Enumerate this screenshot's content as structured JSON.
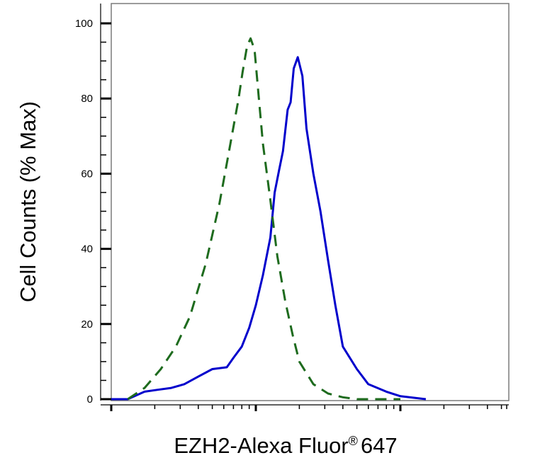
{
  "chart_data": {
    "type": "line",
    "title": "",
    "xlabel": "EZH2-Alexa Fluor",
    "xlabel_mark": "®",
    "xlabel_suffix": "647",
    "ylabel": "Cell Counts (% Max)",
    "x_scale": "log",
    "xlim": [
      1,
      10000
    ],
    "ylim": [
      0,
      105
    ],
    "y_ticks": [
      0,
      20,
      40,
      60,
      80,
      100
    ],
    "y_tick_labels": [
      "0",
      "20",
      "40",
      "60",
      "80",
      "100"
    ],
    "x_tick_labels": [],
    "grid": false,
    "legend": "none",
    "series": [
      {
        "style": "solid",
        "color": "#0000cc",
        "x": [
          1.0,
          1.3,
          1.7,
          2.1,
          2.6,
          3.2,
          4.0,
          5.0,
          6.3,
          7.0,
          8.0,
          9.0,
          10.0,
          11.2,
          12.6,
          13.5,
          14.5,
          15.4,
          16.6,
          17.4,
          18.3,
          19.5,
          21.0,
          22.4,
          25.0,
          28.0,
          31.6,
          35.5,
          40.0,
          50.0,
          60.0,
          80.0,
          100.0,
          150.0,
          1000.0,
          10000.0
        ],
        "y": [
          0,
          0,
          2,
          2.5,
          3,
          4,
          6,
          8,
          8.5,
          11,
          14,
          19,
          25,
          33,
          43,
          55,
          61,
          66,
          77,
          79,
          88,
          91,
          86,
          72,
          60,
          50,
          37,
          25,
          14,
          8,
          4,
          2,
          0.8,
          0,
          0,
          0
        ]
      },
      {
        "style": "dashed",
        "color": "#1e6b1e",
        "x": [
          1.3,
          1.7,
          2.2,
          2.8,
          3.5,
          4.5,
          5.6,
          6.6,
          7.6,
          8.1,
          8.7,
          9.2,
          9.8,
          10.5,
          11.2,
          12.6,
          14.1,
          16.0,
          18.0,
          20.0,
          25.0,
          31.6,
          40.0,
          50.0,
          60.0,
          100.0
        ],
        "y": [
          0,
          3,
          8,
          14,
          22,
          36,
          52,
          67,
          80,
          87,
          94,
          96,
          93,
          80,
          68,
          53,
          38,
          26,
          17,
          10,
          4,
          1.5,
          0.5,
          0,
          0,
          0
        ]
      }
    ]
  }
}
